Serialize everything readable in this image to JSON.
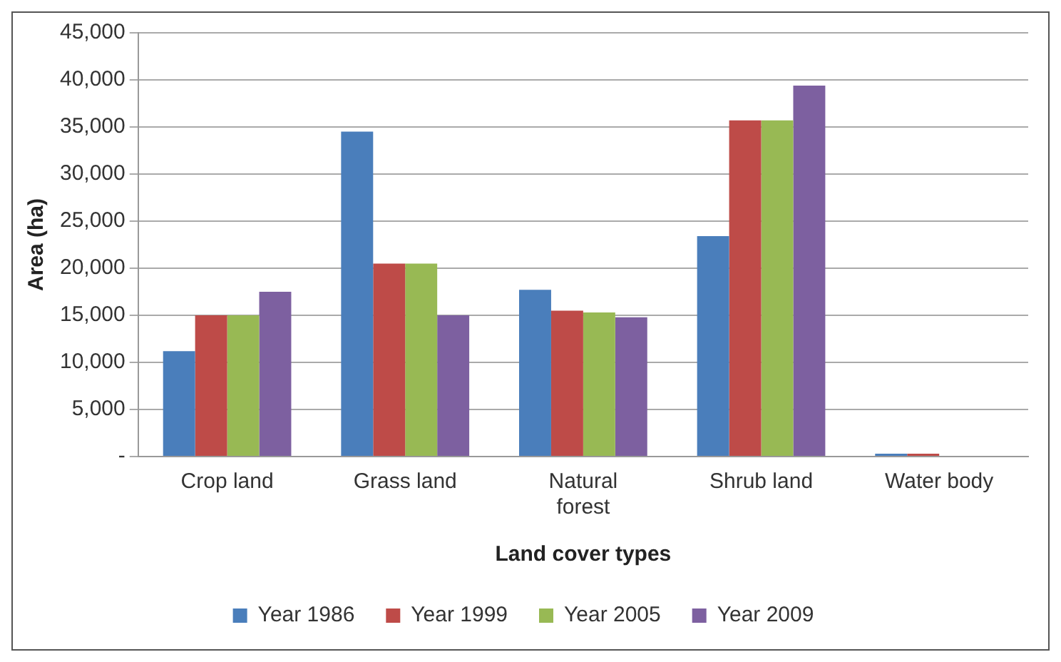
{
  "chart_data": {
    "type": "bar",
    "xlabel": "Land cover types",
    "ylabel": "Area (ha)",
    "categories": [
      "Crop land",
      "Grass land",
      "Natural forest",
      "Shrub land",
      "Water body"
    ],
    "series": [
      {
        "name": "Year 1986",
        "color": "#4a7ebb",
        "values": [
          11200,
          34500,
          17700,
          23400,
          300
        ]
      },
      {
        "name": "Year 1999",
        "color": "#be4b48",
        "values": [
          15000,
          20500,
          15500,
          35700,
          300
        ]
      },
      {
        "name": "Year 2005",
        "color": "#98b954",
        "values": [
          15000,
          20500,
          15300,
          35700,
          0
        ]
      },
      {
        "name": "Year 2009",
        "color": "#7d60a0",
        "values": [
          17500,
          15000,
          14800,
          39400,
          0
        ]
      }
    ],
    "ylim": [
      0,
      45000
    ],
    "yticks": [
      {
        "value": 0,
        "label": "-"
      },
      {
        "value": 5000,
        "label": "5,000"
      },
      {
        "value": 10000,
        "label": "10,000"
      },
      {
        "value": 15000,
        "label": "15,000"
      },
      {
        "value": 20000,
        "label": "20,000"
      },
      {
        "value": 25000,
        "label": "25,000"
      },
      {
        "value": 30000,
        "label": "30,000"
      },
      {
        "value": 35000,
        "label": "35,000"
      },
      {
        "value": 40000,
        "label": "40,000"
      },
      {
        "value": 45000,
        "label": "45,000"
      }
    ],
    "grid": "y",
    "legend": "bottom"
  }
}
